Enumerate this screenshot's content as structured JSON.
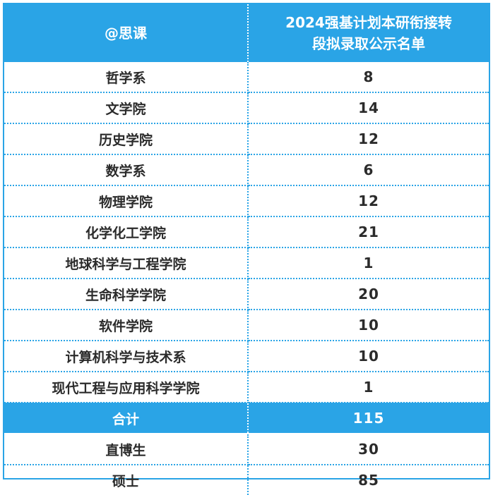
{
  "table": {
    "header": {
      "left": "@思课",
      "right_line1": "2024强基计划本研衔接转",
      "right_line2": "段拟录取公示名单"
    },
    "rows": [
      {
        "name": "哲学系",
        "value": "8"
      },
      {
        "name": "文学院",
        "value": "14"
      },
      {
        "name": "历史学院",
        "value": "12"
      },
      {
        "name": "数学系",
        "value": "6"
      },
      {
        "name": "物理学院",
        "value": "12"
      },
      {
        "name": "化学化工学院",
        "value": "21"
      },
      {
        "name": "地球科学与工程学院",
        "value": "1"
      },
      {
        "name": "生命科学学院",
        "value": "20"
      },
      {
        "name": "软件学院",
        "value": "10"
      },
      {
        "name": "计算机科学与技术系",
        "value": "10"
      },
      {
        "name": "现代工程与应用科学学院",
        "value": "1"
      }
    ],
    "total": {
      "name": "合计",
      "value": "115"
    },
    "breakdown": [
      {
        "name": "直博生",
        "value": "30"
      },
      {
        "name": "硕士",
        "value": "85"
      }
    ]
  },
  "colors": {
    "accent": "#2aa4e6",
    "text": "#2b2b2b",
    "header_text": "#ffffff"
  }
}
